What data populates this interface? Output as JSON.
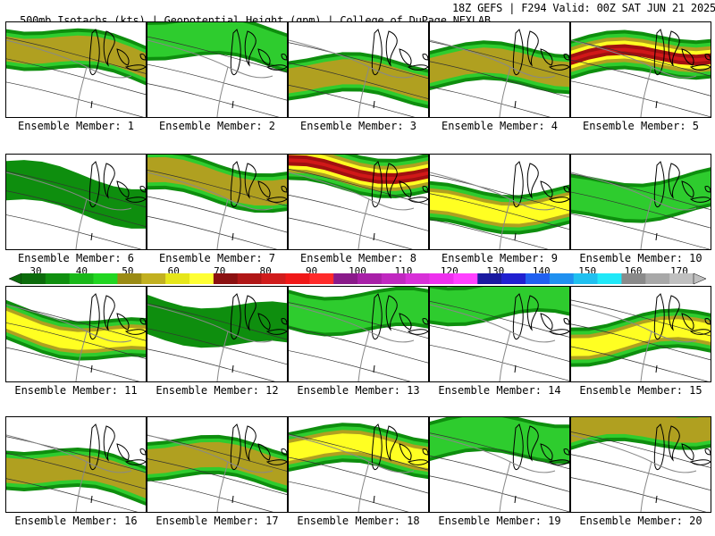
{
  "header": {
    "title": "500mb Isotachs (kts) | Geopotential Height (gpm) | College of DuPage NEXLAB",
    "valid": "18Z GEFS | F294 Valid: 00Z SAT JUN 21 2025"
  },
  "member_label_prefix": "Ensemble Member:",
  "members": [
    {
      "id": "1",
      "label": "Ensemble Member: 1",
      "max_speed_kts": 60
    },
    {
      "id": "2",
      "label": "Ensemble Member: 2",
      "max_speed_kts": 50
    },
    {
      "id": "3",
      "label": "Ensemble Member: 3",
      "max_speed_kts": 60
    },
    {
      "id": "4",
      "label": "Ensemble Member: 4",
      "max_speed_kts": 60
    },
    {
      "id": "5",
      "label": "Ensemble Member: 5",
      "max_speed_kts": 90
    },
    {
      "id": "6",
      "label": "Ensemble Member: 6",
      "max_speed_kts": 40
    },
    {
      "id": "7",
      "label": "Ensemble Member: 7",
      "max_speed_kts": 60
    },
    {
      "id": "8",
      "label": "Ensemble Member: 8",
      "max_speed_kts": 90
    },
    {
      "id": "9",
      "label": "Ensemble Member: 9",
      "max_speed_kts": 70
    },
    {
      "id": "10",
      "label": "Ensemble Member: 10",
      "max_speed_kts": 50
    },
    {
      "id": "11",
      "label": "Ensemble Member: 11",
      "max_speed_kts": 70
    },
    {
      "id": "12",
      "label": "Ensemble Member: 12",
      "max_speed_kts": 40
    },
    {
      "id": "13",
      "label": "Ensemble Member: 13",
      "max_speed_kts": 50
    },
    {
      "id": "14",
      "label": "Ensemble Member: 14",
      "max_speed_kts": 50
    },
    {
      "id": "15",
      "label": "Ensemble Member: 15",
      "max_speed_kts": 70
    },
    {
      "id": "16",
      "label": "Ensemble Member: 16",
      "max_speed_kts": 60
    },
    {
      "id": "17",
      "label": "Ensemble Member: 17",
      "max_speed_kts": 60
    },
    {
      "id": "18",
      "label": "Ensemble Member: 18",
      "max_speed_kts": 70
    },
    {
      "id": "19",
      "label": "Ensemble Member: 19",
      "max_speed_kts": 50
    },
    {
      "id": "20",
      "label": "Ensemble Member: 20",
      "max_speed_kts": 60
    }
  ],
  "colorbar": {
    "ticks": [
      "30",
      "40",
      "50",
      "60",
      "70",
      "80",
      "90",
      "100",
      "110",
      "120",
      "130",
      "140",
      "150",
      "160",
      "170"
    ],
    "colors": [
      "#0b6b0b",
      "#0f8f0f",
      "#19b819",
      "#21d621",
      "#9a8b14",
      "#c2b020",
      "#e6e61a",
      "#ffff33",
      "#8b1010",
      "#b01616",
      "#d01c1c",
      "#f01818",
      "#ff2a2a",
      "#8a1a8a",
      "#a820a8",
      "#c028c0",
      "#d830d8",
      "#ee30ee",
      "#ff40ff",
      "#1a1aa0",
      "#2020d0",
      "#2060f0",
      "#2090f0",
      "#20c0f0",
      "#20e8f8",
      "#8a8a8a",
      "#a8a8a8",
      "#c0c0c0"
    ]
  }
}
